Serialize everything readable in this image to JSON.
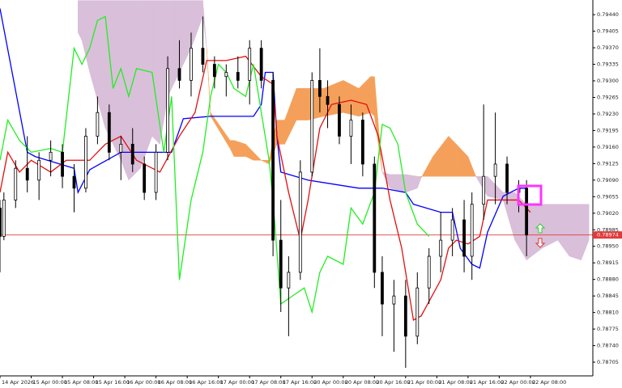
{
  "chart_data": {
    "type": "candlestick",
    "xlim": [
      0,
      152
    ],
    "ylim": [
      0.78676,
      0.79471
    ],
    "xticks": [
      {
        "value": 0,
        "label": "14 Apr 2026"
      },
      {
        "value": 8,
        "label": "15 Apr 00:00"
      },
      {
        "value": 16,
        "label": "15 Apr 08:00"
      },
      {
        "value": 24,
        "label": "15 Apr 16:00"
      },
      {
        "value": 32,
        "label": "16 Apr 00:00"
      },
      {
        "value": 40,
        "label": "16 Apr 08:00"
      },
      {
        "value": 48,
        "label": "16 Apr 16:00"
      },
      {
        "value": 56,
        "label": "17 Apr 00:00"
      },
      {
        "value": 64,
        "label": "17 Apr 08:00"
      },
      {
        "value": 72,
        "label": "17 Apr 16:00"
      },
      {
        "value": 80,
        "label": "20 Apr 00:00"
      },
      {
        "value": 88,
        "label": "20 Apr 08:00"
      },
      {
        "value": 96,
        "label": "20 Apr 16:00"
      },
      {
        "value": 104,
        "label": "21 Apr 00:00"
      },
      {
        "value": 112,
        "label": "21 Apr 08:00"
      },
      {
        "value": 120,
        "label": "21 Apr 16:00"
      },
      {
        "value": 128,
        "label": "22 Apr 00:00"
      },
      {
        "value": 136,
        "label": "22 Apr 08:00"
      }
    ],
    "yticks": [
      {
        "value": 0.7944,
        "label": "0.79440"
      },
      {
        "value": 0.79405,
        "label": "0.79405"
      },
      {
        "value": 0.7937,
        "label": "0.79370"
      },
      {
        "value": 0.79335,
        "label": "0.79335"
      },
      {
        "value": 0.793,
        "label": "0.79300"
      },
      {
        "value": 0.79265,
        "label": "0.79265"
      },
      {
        "value": 0.7923,
        "label": "0.79230"
      },
      {
        "value": 0.79195,
        "label": "0.79195"
      },
      {
        "value": 0.7916,
        "label": "0.79160"
      },
      {
        "value": 0.79125,
        "label": "0.79125"
      },
      {
        "value": 0.7909,
        "label": "0.79090"
      },
      {
        "value": 0.79055,
        "label": "0.79055"
      },
      {
        "value": 0.7902,
        "label": "0.79020"
      },
      {
        "value": 0.78985,
        "label": "0.78985"
      },
      {
        "value": 0.7895,
        "label": "0.78950"
      },
      {
        "value": 0.78915,
        "label": "0.78915"
      },
      {
        "value": 0.7888,
        "label": "0.78880"
      },
      {
        "value": 0.78845,
        "label": "0.78845"
      },
      {
        "value": 0.7881,
        "label": "0.78810"
      },
      {
        "value": 0.78775,
        "label": "0.78775"
      },
      {
        "value": 0.7874,
        "label": "0.78740"
      },
      {
        "value": 0.78705,
        "label": "0.78705"
      }
    ],
    "current_price": {
      "value": 0.78974,
      "label": "0.78974",
      "color": "#e03a3a"
    },
    "cloud": {
      "up_color": "#f5a05a",
      "down_color": "#d9bfd9",
      "x": [
        20,
        21,
        23,
        27,
        31,
        33,
        36,
        39,
        41,
        43,
        45,
        49,
        52,
        53,
        54,
        59,
        60,
        63,
        65,
        67,
        69,
        71,
        73,
        76,
        79,
        83,
        88,
        92,
        95,
        96,
        98,
        100,
        104,
        107,
        108,
        111,
        115,
        117,
        120,
        122,
        125,
        129,
        132,
        135,
        139,
        143,
        146,
        149,
        151
      ],
      "span_a": [
        0.79402,
        0.79386,
        0.79318,
        0.792,
        0.79132,
        0.7909,
        0.79115,
        0.79183,
        0.79166,
        0.79267,
        0.79301,
        0.79369,
        0.79436,
        0.79369,
        0.79233,
        0.79174,
        0.79174,
        0.79166,
        0.79149,
        0.79132,
        0.79132,
        0.79217,
        0.79217,
        0.79284,
        0.79284,
        0.79284,
        0.79301,
        0.79284,
        0.79309,
        0.79309,
        0.79107,
        0.79073,
        0.79064,
        0.79073,
        0.79095,
        0.7914,
        0.79183,
        0.79166,
        0.7914,
        0.79098,
        0.79056,
        0.79048,
        0.78963,
        0.78921,
        0.78946,
        0.78963,
        0.78929,
        0.78921,
        0.78963
      ],
      "span_b": [
        0.7947,
        0.7947,
        0.7947,
        0.7947,
        0.7947,
        0.7947,
        0.7947,
        0.7947,
        0.7947,
        0.7947,
        0.7947,
        0.7947,
        0.7947,
        0.79369,
        0.79225,
        0.79157,
        0.7914,
        0.7914,
        0.79132,
        0.79132,
        0.79124,
        0.79166,
        0.79166,
        0.79217,
        0.79217,
        0.79225,
        0.79233,
        0.79225,
        0.79233,
        0.79225,
        0.79107,
        0.79102,
        0.79102,
        0.79098,
        0.79098,
        0.79098,
        0.79098,
        0.79098,
        0.79098,
        0.79098,
        0.79098,
        0.79064,
        0.79064,
        0.79039,
        0.79039,
        0.79039,
        0.79039,
        0.79039,
        0.79039
      ]
    },
    "lines": [
      {
        "color": "#0000ff",
        "x": [
          0,
          7,
          9,
          19,
          20,
          23,
          31,
          44,
          47,
          54,
          65,
          67,
          68,
          70,
          71,
          72,
          79,
          92,
          98,
          104,
          106,
          113,
          116,
          118,
          121,
          123,
          125,
          129,
          133,
          135
        ],
        "values": [
          0.79453,
          0.79149,
          0.7914,
          0.79115,
          0.79064,
          0.79112,
          0.79149,
          0.79149,
          0.7922,
          0.79225,
          0.79225,
          0.7925,
          0.79318,
          0.79318,
          0.79183,
          0.79107,
          0.7909,
          0.79073,
          0.79073,
          0.79064,
          0.79039,
          0.79022,
          0.79022,
          0.78946,
          0.78912,
          0.78904,
          0.7898,
          0.79056,
          0.79073,
          0.79073
        ]
      },
      {
        "color": "#e01010",
        "x": [
          0,
          2,
          5,
          8,
          13,
          17,
          23,
          27,
          31,
          35,
          41,
          46,
          50,
          53,
          58,
          63,
          67,
          70,
          71,
          74,
          77,
          79,
          82,
          85,
          90,
          94,
          97,
          100,
          103,
          106,
          108,
          113,
          115,
          117,
          120,
          123,
          125,
          129,
          133,
          136
        ],
        "values": [
          0.79064,
          0.79149,
          0.79107,
          0.79132,
          0.79107,
          0.79132,
          0.79132,
          0.79166,
          0.79183,
          0.79132,
          0.79107,
          0.79183,
          0.79233,
          0.79343,
          0.79343,
          0.79352,
          0.79309,
          0.79293,
          0.79183,
          0.79064,
          0.78963,
          0.79048,
          0.792,
          0.7925,
          0.79259,
          0.7925,
          0.79183,
          0.79048,
          0.78946,
          0.78794,
          0.78803,
          0.78879,
          0.78946,
          0.78963,
          0.78955,
          0.78971,
          0.79048,
          0.79048,
          0.79048,
          0.79022
        ]
      },
      {
        "color": "#22ee22",
        "x": [
          0,
          2,
          5,
          8,
          13,
          16,
          19,
          21,
          23,
          25,
          27,
          29,
          31,
          33,
          35,
          39,
          42,
          44,
          46,
          49,
          52,
          54,
          56,
          58,
          60,
          63,
          65,
          67,
          69,
          70,
          72,
          75,
          78,
          80,
          82,
          84,
          88,
          90,
          93,
          96,
          98,
          100,
          102,
          104,
          107,
          110
        ],
        "values": [
          0.79132,
          0.79217,
          0.79174,
          0.79149,
          0.79157,
          0.79149,
          0.79369,
          0.79335,
          0.79369,
          0.79428,
          0.79436,
          0.79284,
          0.79326,
          0.79267,
          0.79326,
          0.79318,
          0.79149,
          0.79267,
          0.78879,
          0.79048,
          0.79149,
          0.79267,
          0.79335,
          0.79318,
          0.79284,
          0.79267,
          0.79335,
          0.79233,
          0.79132,
          0.79048,
          0.78828,
          0.78845,
          0.78862,
          0.78811,
          0.78895,
          0.78929,
          0.78912,
          0.79031,
          0.78997,
          0.79064,
          0.79208,
          0.792,
          0.79166,
          0.79064,
          0.78997,
          0.78971
        ]
      }
    ],
    "candles": {
      "x": [
        0,
        1,
        4,
        7,
        10,
        13,
        16,
        19,
        22,
        25,
        28,
        31,
        34,
        37,
        40,
        43,
        46,
        49,
        52,
        55,
        58,
        61,
        64,
        67,
        70,
        72,
        74,
        77,
        80,
        82,
        84,
        87,
        90,
        93,
        96,
        98,
        101,
        104,
        107,
        110,
        113,
        116,
        119,
        121,
        124,
        127,
        130,
        133,
        135
      ],
      "open": [
        0.79031,
        0.78971,
        0.79048,
        0.79115,
        0.7909,
        0.79132,
        0.79149,
        0.79098,
        0.79073,
        0.79183,
        0.79233,
        0.79149,
        0.79166,
        0.79124,
        0.79064,
        0.79149,
        0.79326,
        0.79301,
        0.79369,
        0.79335,
        0.79309,
        0.79318,
        0.79301,
        0.79369,
        0.79301,
        0.78963,
        0.78862,
        0.78895,
        0.79107,
        0.79301,
        0.79267,
        0.7925,
        0.79183,
        0.79217,
        0.79124,
        0.78895,
        0.78828,
        0.78845,
        0.7876,
        0.78862,
        0.78929,
        0.78963,
        0.79006,
        0.78929,
        0.79039,
        0.79098,
        0.79124,
        0.79064,
        0.79073
      ],
      "high": [
        0.79048,
        0.79064,
        0.79132,
        0.79183,
        0.79149,
        0.79174,
        0.79166,
        0.79124,
        0.792,
        0.79267,
        0.7925,
        0.79183,
        0.792,
        0.7914,
        0.79166,
        0.79352,
        0.79386,
        0.79402,
        0.79436,
        0.79352,
        0.79335,
        0.79352,
        0.79386,
        0.79386,
        0.79318,
        0.79048,
        0.78929,
        0.79132,
        0.79318,
        0.79369,
        0.79301,
        0.79267,
        0.7925,
        0.79233,
        0.7914,
        0.78929,
        0.78879,
        0.78879,
        0.78895,
        0.78946,
        0.79022,
        0.79031,
        0.79048,
        0.79064,
        0.7925,
        0.79233,
        0.7914,
        0.7909,
        0.7909
      ],
      "low": [
        0.78895,
        0.78963,
        0.79031,
        0.79064,
        0.79048,
        0.79098,
        0.79073,
        0.79022,
        0.79064,
        0.79166,
        0.79132,
        0.7909,
        0.79107,
        0.79048,
        0.79048,
        0.79132,
        0.79284,
        0.79267,
        0.79318,
        0.79284,
        0.79267,
        0.79284,
        0.7925,
        0.79284,
        0.78929,
        0.78811,
        0.7876,
        0.78879,
        0.79098,
        0.79233,
        0.792,
        0.79166,
        0.79124,
        0.79098,
        0.78862,
        0.7876,
        0.78727,
        0.78693,
        0.78743,
        0.78828,
        0.78895,
        0.78929,
        0.78895,
        0.78879,
        0.79006,
        0.79039,
        0.79039,
        0.79022,
        0.78929
      ],
      "close": [
        0.78971,
        0.79048,
        0.79115,
        0.7909,
        0.79132,
        0.79149,
        0.79098,
        0.79073,
        0.79183,
        0.79233,
        0.79149,
        0.79166,
        0.79124,
        0.79064,
        0.79149,
        0.79326,
        0.79301,
        0.79369,
        0.79335,
        0.79309,
        0.79318,
        0.79301,
        0.79369,
        0.79301,
        0.78963,
        0.78862,
        0.78895,
        0.79107,
        0.79301,
        0.79267,
        0.7925,
        0.79183,
        0.79217,
        0.79124,
        0.78895,
        0.78828,
        0.78845,
        0.7876,
        0.78862,
        0.78929,
        0.78963,
        0.79006,
        0.78929,
        0.79039,
        0.79098,
        0.79124,
        0.79064,
        0.79073,
        0.78974
      ]
    }
  }
}
